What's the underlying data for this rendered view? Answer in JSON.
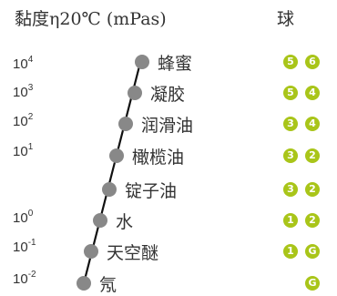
{
  "header": {
    "title": "黏度η20℃ (mPas)",
    "balls_title": "球"
  },
  "scale": {
    "ticks": [
      {
        "base": "10",
        "exp": "4"
      },
      {
        "base": "10",
        "exp": "3"
      },
      {
        "base": "10",
        "exp": "2"
      },
      {
        "base": "10",
        "exp": "1"
      },
      {
        "base": "10",
        "exp": "0"
      },
      {
        "base": "10",
        "exp": "-1"
      },
      {
        "base": "10",
        "exp": "-2"
      }
    ]
  },
  "substances": [
    {
      "name": "蜂蜜",
      "balls": [
        "5",
        "6"
      ]
    },
    {
      "name": "凝胶",
      "balls": [
        "5",
        "4"
      ]
    },
    {
      "name": "润滑油",
      "balls": [
        "3",
        "4"
      ]
    },
    {
      "name": "橄榄油",
      "balls": [
        "3",
        "2"
      ]
    },
    {
      "name": "锭子油",
      "balls": [
        "3",
        "2"
      ]
    },
    {
      "name": "水",
      "balls": [
        "1",
        "2"
      ]
    },
    {
      "name": "天空醚",
      "balls": [
        "1",
        "G"
      ]
    },
    {
      "name": "氖",
      "balls": [
        "",
        "G"
      ]
    }
  ],
  "colors": {
    "ball": "#a9c519",
    "dot": "#888888",
    "line": "#111111"
  }
}
